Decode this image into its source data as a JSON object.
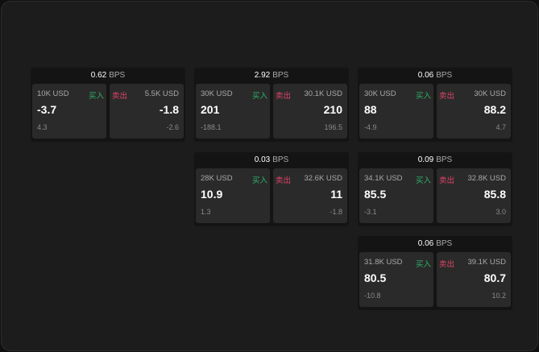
{
  "colors": {
    "buy": "#2fb36b",
    "sell": "#e0446a"
  },
  "labels": {
    "buy": "买入",
    "sell": "卖出",
    "unit": "BPS"
  },
  "cards": [
    {
      "spread": "0.62",
      "buy": {
        "qty": "10K USD",
        "price": "-3.7",
        "change": "4.3"
      },
      "sell": {
        "qty": "5.5K USD",
        "price": "-1.8",
        "change": "-2.6"
      }
    },
    {
      "spread": "2.92",
      "buy": {
        "qty": "30K USD",
        "price": "201",
        "change": "-188.1"
      },
      "sell": {
        "qty": "30.1K USD",
        "price": "210",
        "change": "196.5"
      }
    },
    {
      "spread": "0.06",
      "buy": {
        "qty": "30K USD",
        "price": "88",
        "change": "-4.9"
      },
      "sell": {
        "qty": "30K USD",
        "price": "88.2",
        "change": "4.7"
      }
    },
    {
      "spread": "0.03",
      "buy": {
        "qty": "28K USD",
        "price": "10.9",
        "change": "1.3"
      },
      "sell": {
        "qty": "32.6K USD",
        "price": "11",
        "change": "-1.8"
      }
    },
    {
      "spread": "0.09",
      "buy": {
        "qty": "34.1K USD",
        "price": "85.5",
        "change": "-3.1"
      },
      "sell": {
        "qty": "32.8K USD",
        "price": "85.8",
        "change": "3.0"
      }
    },
    {
      "spread": "0.06",
      "buy": {
        "qty": "31.8K USD",
        "price": "80.5",
        "change": "-10.8"
      },
      "sell": {
        "qty": "39.1K USD",
        "price": "80.7",
        "change": "10.2"
      }
    }
  ]
}
